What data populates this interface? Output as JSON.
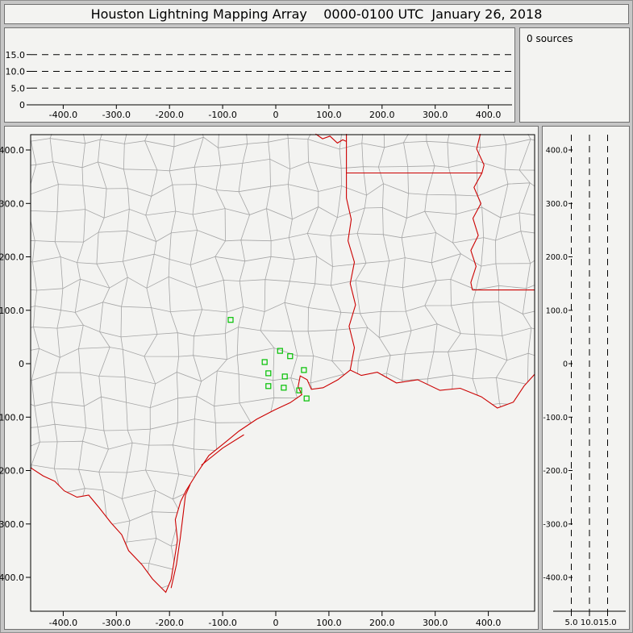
{
  "title": "Houston Lightning Mapping Array    0000-0100 UTC  January 26, 2018",
  "panels": {
    "sources": {
      "label": "0 sources"
    }
  },
  "colors": {
    "state_border": "#cc0000",
    "station_marker": "#00c000",
    "county_line": "#a5a5a5",
    "axis": "#000000",
    "panel_bg": "#f3f3f1",
    "frame_bg": "#c6c6c6"
  },
  "chart_data": [
    {
      "id": "altitude-vs-east-west",
      "type": "scatter",
      "points": [],
      "xlim": [
        -461,
        448
      ],
      "ylim": [
        0,
        20
      ],
      "x_ticks": {
        "values": [
          -400,
          -300,
          -200,
          -100,
          0,
          100,
          200,
          300,
          400
        ],
        "labels": [
          "-400.0",
          "-300.0",
          "-200.0",
          "-100.0",
          "0",
          "100.0",
          "200.0",
          "300.0",
          "400.0"
        ]
      },
      "y_ticks": {
        "values": [
          0,
          5,
          10,
          15
        ],
        "labels": [
          "0",
          "5.0",
          "10.0",
          "15.0"
        ]
      },
      "grid_y_values": [
        5,
        10,
        15
      ],
      "grid_style": "dashed"
    },
    {
      "id": "source-count",
      "type": "table",
      "text": "0 sources"
    },
    {
      "id": "plan-view-map",
      "type": "scatter",
      "xlim": [
        -461,
        487
      ],
      "ylim": [
        -463,
        430
      ],
      "x_ticks": {
        "values": [
          -400,
          -300,
          -200,
          -100,
          0,
          100,
          200,
          300,
          400
        ],
        "labels": [
          "-400.0",
          "-300.0",
          "-200.0",
          "-100.0",
          "0",
          "100.0",
          "200.0",
          "300.0",
          "400.0"
        ]
      },
      "y_ticks": {
        "values": [
          400,
          300,
          200,
          100,
          0,
          -100,
          -200,
          -300,
          -400
        ],
        "labels": [
          "400.0",
          "300.0",
          "200.0",
          "100.0",
          "0",
          "-100.0",
          "-200.0",
          "-300.0",
          "-400.0"
        ]
      },
      "marker": "open-square",
      "marker_color": "#00c000",
      "stations_km": [
        [
          -85,
          82
        ],
        [
          8,
          24
        ],
        [
          -21,
          3
        ],
        [
          27,
          14
        ],
        [
          -14,
          -18
        ],
        [
          17,
          -24
        ],
        [
          53,
          -12
        ],
        [
          -14,
          -42
        ],
        [
          15,
          -45
        ],
        [
          44,
          -50
        ],
        [
          58,
          -65
        ]
      ],
      "map_layers": {
        "coast_and_rio_grande": [
          [
            -461,
            -195
          ],
          [
            -438,
            -210
          ],
          [
            -416,
            -220
          ],
          [
            -398,
            -238
          ],
          [
            -374,
            -250
          ],
          [
            -352,
            -246
          ],
          [
            -332,
            -270
          ],
          [
            -310,
            -298
          ],
          [
            -290,
            -320
          ],
          [
            -277,
            -350
          ],
          [
            -252,
            -376
          ],
          [
            -232,
            -403
          ],
          [
            -207,
            -428
          ],
          [
            -197,
            -404
          ],
          [
            -191,
            -368
          ],
          [
            -185,
            -330
          ],
          [
            -189,
            -292
          ],
          [
            -179,
            -258
          ],
          [
            -169,
            -238
          ],
          [
            -149,
            -206
          ],
          [
            -126,
            -172
          ],
          [
            -96,
            -148
          ],
          [
            -69,
            -126
          ],
          [
            -36,
            -104
          ],
          [
            -3,
            -87
          ],
          [
            27,
            -73
          ],
          [
            49,
            -58
          ],
          [
            42,
            -43
          ],
          [
            46,
            -23
          ],
          [
            59,
            -30
          ],
          [
            67,
            -48
          ],
          [
            89,
            -45
          ],
          [
            117,
            -30
          ],
          [
            140,
            -12
          ],
          [
            161,
            -22
          ],
          [
            191,
            -16
          ],
          [
            227,
            -36
          ],
          [
            267,
            -30
          ],
          [
            309,
            -50
          ],
          [
            347,
            -46
          ],
          [
            387,
            -62
          ],
          [
            417,
            -83
          ],
          [
            447,
            -72
          ],
          [
            467,
            -42
          ],
          [
            487,
            -20
          ]
        ],
        "barrier_islands": [
          [
            [
              -197,
              -420
            ],
            [
              -187,
              -376
            ],
            [
              -180,
              -328
            ],
            [
              -174,
              -280
            ],
            [
              -170,
              -246
            ],
            [
              -161,
              -226
            ]
          ],
          [
            [
              -140,
              -190
            ],
            [
              -100,
              -158
            ],
            [
              -60,
              -133
            ]
          ]
        ],
        "state_borders": {
          "sabine_tx_la": [
            [
              140,
              -12
            ],
            [
              148,
              30
            ],
            [
              138,
              70
            ],
            [
              150,
              110
            ],
            [
              140,
              150
            ],
            [
              148,
              190
            ],
            [
              136,
              230
            ],
            [
              142,
              270
            ],
            [
              133,
              310
            ],
            [
              133,
              357
            ]
          ],
          "tx_ar": [
            [
              133,
              357
            ],
            [
              133,
              430
            ]
          ],
          "ar_la_33n": [
            [
              133,
              357
            ],
            [
              388,
              357
            ]
          ],
          "red_river": [
            [
              75,
              430
            ],
            [
              88,
              421
            ],
            [
              102,
              426
            ],
            [
              116,
              413
            ],
            [
              126,
              419
            ],
            [
              133,
              416
            ]
          ],
          "mississippi_river": [
            [
              385,
              430
            ],
            [
              378,
              402
            ],
            [
              392,
              372
            ],
            [
              388,
              357
            ],
            [
              373,
              330
            ],
            [
              386,
              300
            ],
            [
              371,
              272
            ],
            [
              381,
              240
            ],
            [
              367,
              212
            ],
            [
              377,
              182
            ],
            [
              367,
              152
            ],
            [
              370,
              138
            ]
          ],
          "la_ms_31n": [
            [
              370,
              138
            ],
            [
              487,
              138
            ]
          ]
        }
      }
    },
    {
      "id": "altitude-vs-north-south",
      "type": "scatter",
      "points": [],
      "xlim": [
        0,
        20
      ],
      "ylim": [
        -463,
        430
      ],
      "x_ticks": {
        "values": [
          5,
          10,
          15
        ],
        "labels": [
          "5.0",
          "10.0",
          "15.0"
        ]
      },
      "y_ticks": {
        "values": [
          400,
          300,
          200,
          100,
          0,
          -100,
          -200,
          -300,
          -400
        ],
        "labels": [
          "400.0",
          "300.0",
          "200.0",
          "100.0",
          "0",
          "-100.0",
          "-200.0",
          "-300.0",
          "-400.0"
        ]
      },
      "grid_x_values": [
        5,
        10,
        15
      ],
      "grid_style": "dashed"
    }
  ]
}
